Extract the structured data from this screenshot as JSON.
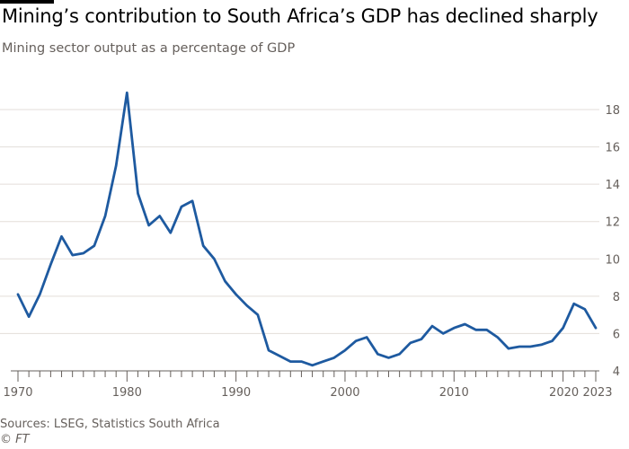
{
  "chart_data": {
    "type": "line",
    "title": "Mining’s contribution to South Africa’s GDP has declined sharply",
    "subtitle": "Mining sector output as a percentage of GDP",
    "xlabel": "",
    "ylabel": "",
    "xlim": [
      1970,
      2023
    ],
    "ylim": [
      4,
      19
    ],
    "yticks": [
      4,
      6,
      8,
      10,
      12,
      14,
      16,
      18
    ],
    "xticks": [
      "1970",
      "1980",
      "1990",
      "2000",
      "2010",
      "2020",
      "2023"
    ],
    "grid": true,
    "series": [
      {
        "name": "Mining sector output as a percentage of GDP",
        "color": "#1e5aa0",
        "x": [
          1970,
          1971,
          1972,
          1973,
          1974,
          1975,
          1976,
          1977,
          1978,
          1979,
          1980,
          1981,
          1982,
          1983,
          1984,
          1985,
          1986,
          1987,
          1988,
          1989,
          1990,
          1991,
          1992,
          1993,
          1994,
          1995,
          1996,
          1997,
          1998,
          1999,
          2000,
          2001,
          2002,
          2003,
          2004,
          2005,
          2006,
          2007,
          2008,
          2009,
          2010,
          2011,
          2012,
          2013,
          2014,
          2015,
          2016,
          2017,
          2018,
          2019,
          2020,
          2021,
          2022,
          2023
        ],
        "values": [
          8.1,
          6.9,
          8.1,
          9.7,
          11.2,
          10.2,
          10.3,
          10.7,
          12.3,
          15.0,
          18.9,
          13.5,
          11.8,
          12.3,
          11.4,
          12.8,
          13.1,
          10.7,
          10.0,
          8.8,
          8.1,
          7.5,
          7.0,
          5.1,
          4.8,
          4.5,
          4.5,
          4.3,
          4.5,
          4.7,
          5.1,
          5.6,
          5.8,
          4.9,
          4.7,
          4.9,
          5.5,
          5.7,
          6.4,
          6.0,
          6.3,
          6.5,
          6.2,
          6.2,
          5.8,
          5.2,
          5.3,
          5.3,
          5.4,
          5.6,
          6.3,
          7.6,
          7.3,
          6.3
        ]
      }
    ]
  },
  "footer": {
    "source": "Sources: LSEG, Statistics South Africa",
    "credit": "© FT"
  }
}
